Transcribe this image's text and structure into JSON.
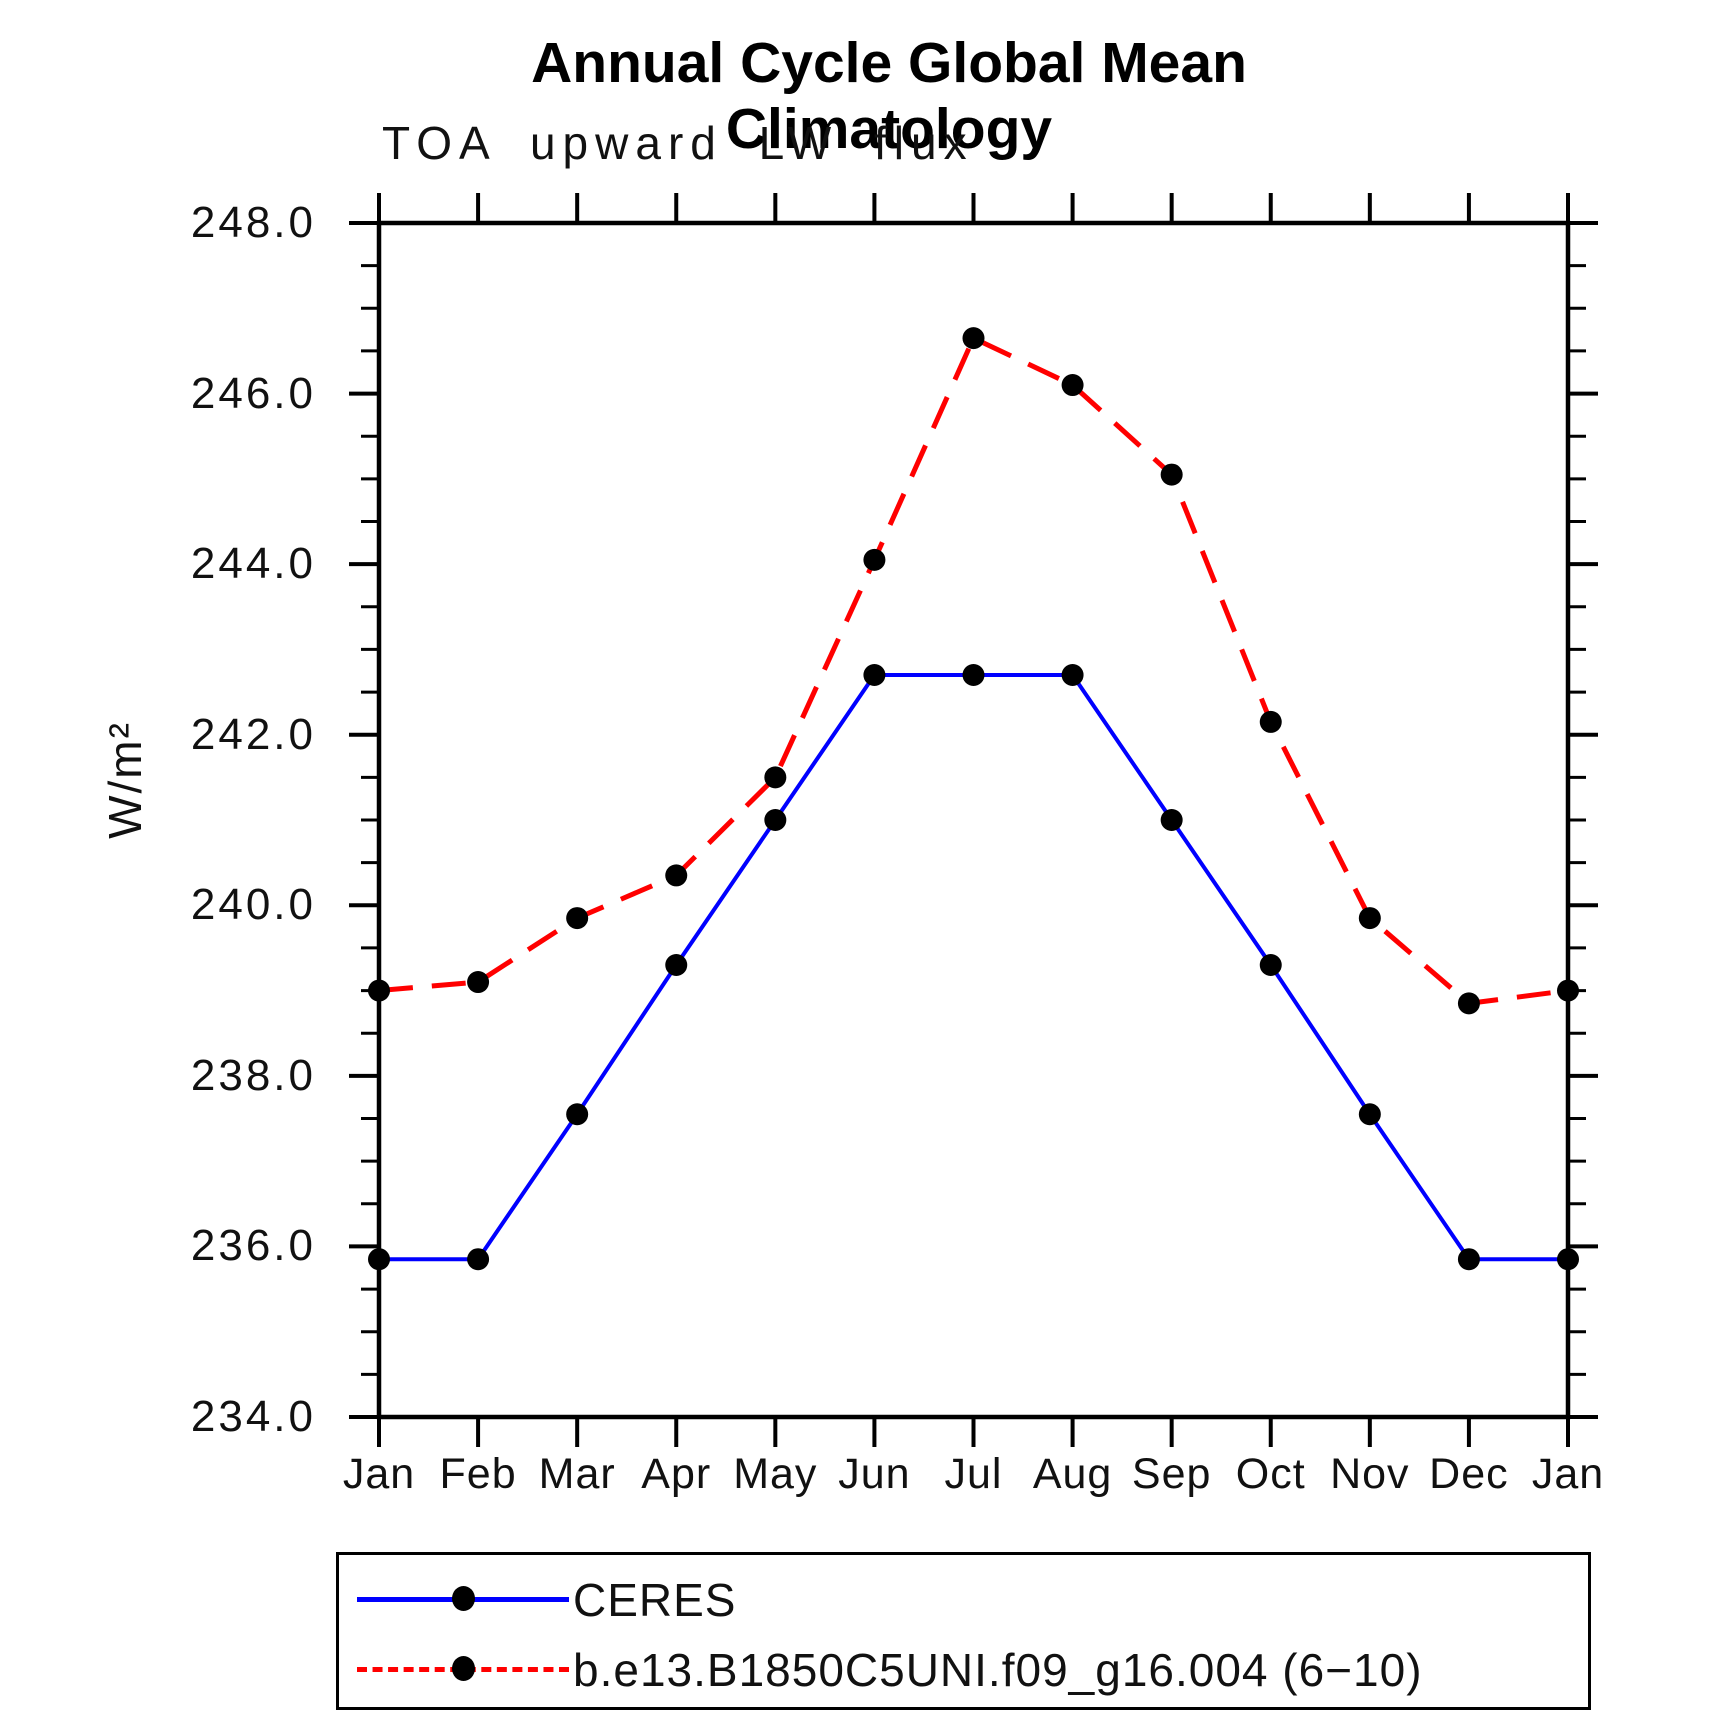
{
  "title": "Annual Cycle Global Mean Climatology",
  "subtitle": "TOA upward LW flux",
  "ylabel": "W/m²",
  "axis_colors": {
    "axis": "#000000",
    "text": "#111111"
  },
  "legend": {
    "items": [
      {
        "label": "CERES",
        "color": "#0000ff",
        "style": "solid"
      },
      {
        "label": "b.e13.B1850C5UNI.f09_g16.004 (6−10)",
        "color": "#ff0000",
        "style": "dashed"
      }
    ]
  },
  "chart_data": {
    "type": "line",
    "title": "Annual Cycle Global Mean Climatology",
    "subtitle": "TOA upward LW flux",
    "xlabel": "",
    "ylabel": "W/m²",
    "x_categories": [
      "Jan",
      "Feb",
      "Mar",
      "Apr",
      "May",
      "Jun",
      "Jul",
      "Aug",
      "Sep",
      "Oct",
      "Nov",
      "Dec",
      "Jan"
    ],
    "series": [
      {
        "name": "CERES",
        "color": "#0000ff",
        "line_style": "solid",
        "line_width": 4,
        "marker": "filled-circle",
        "marker_color": "#000000",
        "values": [
          235.85,
          235.85,
          237.55,
          239.3,
          241.0,
          242.7,
          242.7,
          242.7,
          241.0,
          239.3,
          237.55,
          235.85,
          235.85
        ]
      },
      {
        "name": "b.e13.B1850C5UNI.f09_g16.004 (6−10)",
        "color": "#ff0000",
        "line_style": "dashed",
        "line_width": 5,
        "marker": "filled-circle",
        "marker_color": "#000000",
        "values": [
          239.0,
          239.1,
          239.85,
          240.35,
          241.5,
          244.05,
          246.65,
          246.1,
          245.05,
          242.15,
          239.85,
          238.85,
          239.0
        ]
      }
    ],
    "ylim": [
      234.0,
      248.0
    ],
    "y_major_step": 2.0,
    "y_minor_step": 0.5,
    "y_tick_decimals": 1,
    "grid": false,
    "marker_radius": 11,
    "legend_position": "bottom-left-box"
  }
}
